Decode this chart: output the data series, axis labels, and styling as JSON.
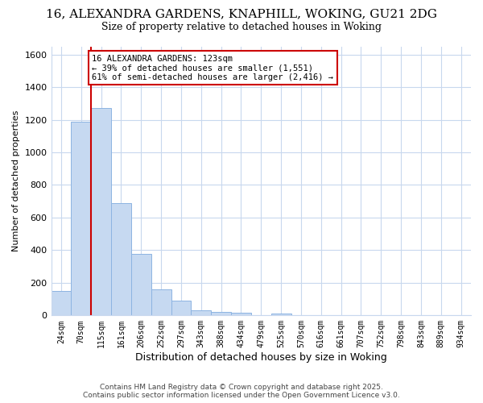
{
  "title_line1": "16, ALEXANDRA GARDENS, KNAPHILL, WOKING, GU21 2DG",
  "title_line2": "Size of property relative to detached houses in Woking",
  "xlabel": "Distribution of detached houses by size in Woking",
  "ylabel": "Number of detached properties",
  "categories": [
    "24sqm",
    "70sqm",
    "115sqm",
    "161sqm",
    "206sqm",
    "252sqm",
    "297sqm",
    "343sqm",
    "388sqm",
    "434sqm",
    "479sqm",
    "525sqm",
    "570sqm",
    "616sqm",
    "661sqm",
    "707sqm",
    "752sqm",
    "798sqm",
    "843sqm",
    "889sqm",
    "934sqm"
  ],
  "values": [
    150,
    1190,
    1270,
    690,
    375,
    160,
    90,
    30,
    22,
    18,
    0,
    10,
    0,
    0,
    0,
    0,
    0,
    0,
    0,
    0,
    0
  ],
  "bar_color": "#c6d9f1",
  "bar_edge_color": "#8db4e2",
  "vline_x": 2,
  "vline_color": "#cc0000",
  "annotation_text": "16 ALEXANDRA GARDENS: 123sqm\n← 39% of detached houses are smaller (1,551)\n61% of semi-detached houses are larger (2,416) →",
  "annotation_box_color": "#ffffff",
  "annotation_box_edge_color": "#cc0000",
  "ylim": [
    0,
    1650
  ],
  "yticks": [
    0,
    200,
    400,
    600,
    800,
    1000,
    1200,
    1400,
    1600
  ],
  "background_color": "#ffffff",
  "grid_color": "#c8d8ee",
  "footer_line1": "Contains HM Land Registry data © Crown copyright and database right 2025.",
  "footer_line2": "Contains public sector information licensed under the Open Government Licence v3.0."
}
